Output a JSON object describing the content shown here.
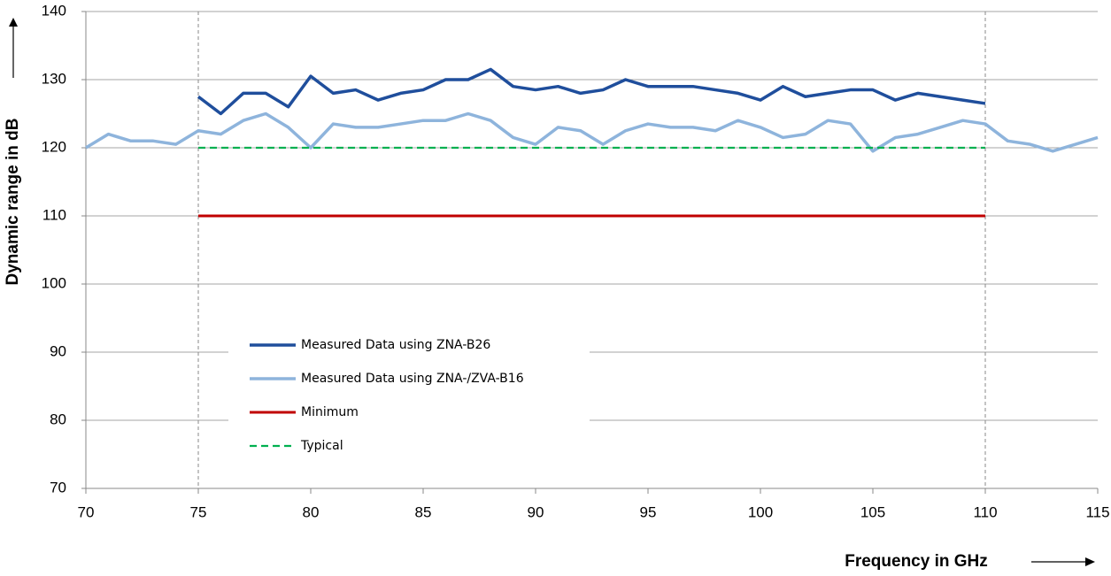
{
  "chart_data": {
    "type": "line",
    "x_label": "Frequency in GHz",
    "y_label": "Dynamic range in dB",
    "xlim": [
      70,
      115
    ],
    "xticks": [
      70,
      75,
      80,
      85,
      90,
      95,
      100,
      105,
      110,
      115
    ],
    "ylim": [
      70,
      140
    ],
    "yticks": [
      70,
      80,
      90,
      100,
      110,
      120,
      130,
      140
    ],
    "grid": true,
    "vlines": [
      75,
      110
    ],
    "series": [
      {
        "name": "Measured Data using ZNA-B26",
        "color": "#1f4e9c",
        "dashed": false,
        "x": [
          75,
          76,
          77,
          78,
          79,
          80,
          81,
          82,
          83,
          84,
          85,
          86,
          87,
          88,
          89,
          90,
          91,
          92,
          93,
          94,
          95,
          96,
          97,
          98,
          99,
          100,
          101,
          102,
          103,
          104,
          105,
          106,
          107,
          108,
          109,
          110
        ],
        "values": [
          127.5,
          125,
          128,
          128,
          126,
          130.5,
          128,
          128.5,
          127,
          128,
          128.5,
          130,
          130,
          131.5,
          129,
          128.5,
          129,
          128,
          128.5,
          130,
          129,
          129,
          129,
          128.5,
          128,
          127,
          129,
          127.5,
          128,
          128.5,
          128.5,
          127,
          128,
          127.5,
          127,
          126.5
        ]
      },
      {
        "name": "Measured Data using ZNA-/ZVA-B16",
        "color": "#8eb4dc",
        "dashed": false,
        "x": [
          70,
          71,
          72,
          73,
          74,
          75,
          76,
          77,
          78,
          79,
          80,
          81,
          82,
          83,
          84,
          85,
          86,
          87,
          88,
          89,
          90,
          91,
          92,
          93,
          94,
          95,
          96,
          97,
          98,
          99,
          100,
          101,
          102,
          103,
          104,
          105,
          106,
          107,
          108,
          109,
          110,
          111,
          112,
          113,
          114,
          115
        ],
        "values": [
          120,
          122,
          121,
          121,
          120.5,
          122.5,
          122,
          124,
          125,
          123,
          120,
          123.5,
          123,
          123,
          123.5,
          124,
          124,
          125,
          124,
          121.5,
          120.5,
          123,
          122.5,
          120.5,
          122.5,
          123.5,
          123,
          123,
          122.5,
          124,
          123,
          121.5,
          122,
          124,
          123.5,
          119.5,
          121.5,
          122,
          123,
          124,
          123.5,
          121,
          120.5,
          119.5,
          120.5,
          121.5
        ]
      },
      {
        "name": "Minimum",
        "color": "#c00000",
        "dashed": false,
        "x": [
          75,
          110
        ],
        "values": [
          110,
          110
        ]
      },
      {
        "name": "Typical",
        "color": "#00b050",
        "dashed": true,
        "x": [
          75,
          110
        ],
        "values": [
          120,
          120
        ]
      }
    ]
  }
}
